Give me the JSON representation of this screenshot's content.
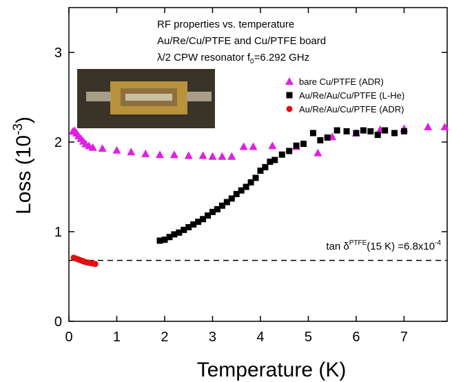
{
  "chart_data": {
    "type": "scatter",
    "title_lines": [
      "RF properties vs. temperature",
      "Au/Re/Cu/PTFE and Cu/PTFE board"
    ],
    "title_line3": {
      "main": "λ/2 CPW resonator f",
      "sub": "0",
      "rest": "=6.292 GHz"
    },
    "x_label": "Temperature (K)",
    "y_label": {
      "main": "Loss (10",
      "sup": "-3",
      "end": ")"
    },
    "xlim": [
      0,
      7.9
    ],
    "ylim": [
      0,
      3.5
    ],
    "xticks": [
      0,
      1,
      2,
      3,
      4,
      5,
      6,
      7
    ],
    "yticks": [
      0,
      1,
      2,
      3
    ],
    "reference_line": 0.68,
    "annotation": {
      "a": "tan δ",
      "sup1": "PTFE",
      "b": "(15 K) =6.8x10",
      "sup2": "-4"
    },
    "series": [
      {
        "name": "bare Cu/PTFE (ADR)",
        "color": "#e020e0",
        "marker": "triangle",
        "x": [
          0.08,
          0.12,
          0.16,
          0.2,
          0.25,
          0.3,
          0.35,
          0.42,
          0.5,
          0.7,
          1.0,
          1.3,
          1.6,
          1.9,
          2.2,
          2.5,
          2.8,
          3.0,
          3.2,
          3.4,
          3.65,
          3.85,
          4.25,
          4.75,
          5.2,
          5.5,
          6.0,
          6.5,
          7.0,
          7.5,
          7.85
        ],
        "values": [
          2.12,
          2.13,
          2.1,
          2.07,
          2.04,
          2.01,
          1.98,
          1.96,
          1.94,
          1.93,
          1.91,
          1.89,
          1.87,
          1.86,
          1.86,
          1.85,
          1.85,
          1.84,
          1.84,
          1.84,
          1.95,
          1.95,
          1.96,
          1.95,
          1.88,
          2.06,
          2.1,
          2.14,
          2.15,
          2.17,
          2.17
        ]
      },
      {
        "name": "Au/Re/Au/Cu/PTFE (L-He)",
        "color": "#000000",
        "marker": "square",
        "x": [
          1.9,
          2.0,
          2.1,
          2.2,
          2.3,
          2.4,
          2.5,
          2.6,
          2.7,
          2.8,
          2.9,
          3.0,
          3.1,
          3.2,
          3.3,
          3.4,
          3.5,
          3.6,
          3.7,
          3.8,
          3.9,
          4.0,
          4.1,
          4.2,
          4.3,
          4.45,
          4.6,
          4.75,
          4.9,
          5.1,
          5.25,
          5.4,
          5.6,
          5.8,
          6.0,
          6.15,
          6.3,
          6.45,
          6.6,
          6.8,
          7.0
        ],
        "values": [
          0.9,
          0.91,
          0.94,
          0.97,
          0.99,
          1.02,
          1.05,
          1.08,
          1.11,
          1.14,
          1.18,
          1.22,
          1.25,
          1.29,
          1.33,
          1.37,
          1.42,
          1.46,
          1.5,
          1.55,
          1.6,
          1.68,
          1.72,
          1.78,
          1.8,
          1.86,
          1.9,
          1.96,
          1.98,
          2.1,
          2.02,
          2.05,
          2.13,
          2.12,
          2.1,
          2.13,
          2.12,
          2.08,
          2.13,
          2.1,
          2.12
        ]
      },
      {
        "name": "Au/Re/Au/Cu/PTFE (ADR)",
        "color": "#e01010",
        "marker": "circle",
        "x": [
          0.1,
          0.15,
          0.2,
          0.25,
          0.3,
          0.35,
          0.4,
          0.45,
          0.5,
          0.55
        ],
        "values": [
          0.71,
          0.7,
          0.69,
          0.68,
          0.67,
          0.66,
          0.655,
          0.65,
          0.645,
          0.64
        ]
      }
    ]
  }
}
